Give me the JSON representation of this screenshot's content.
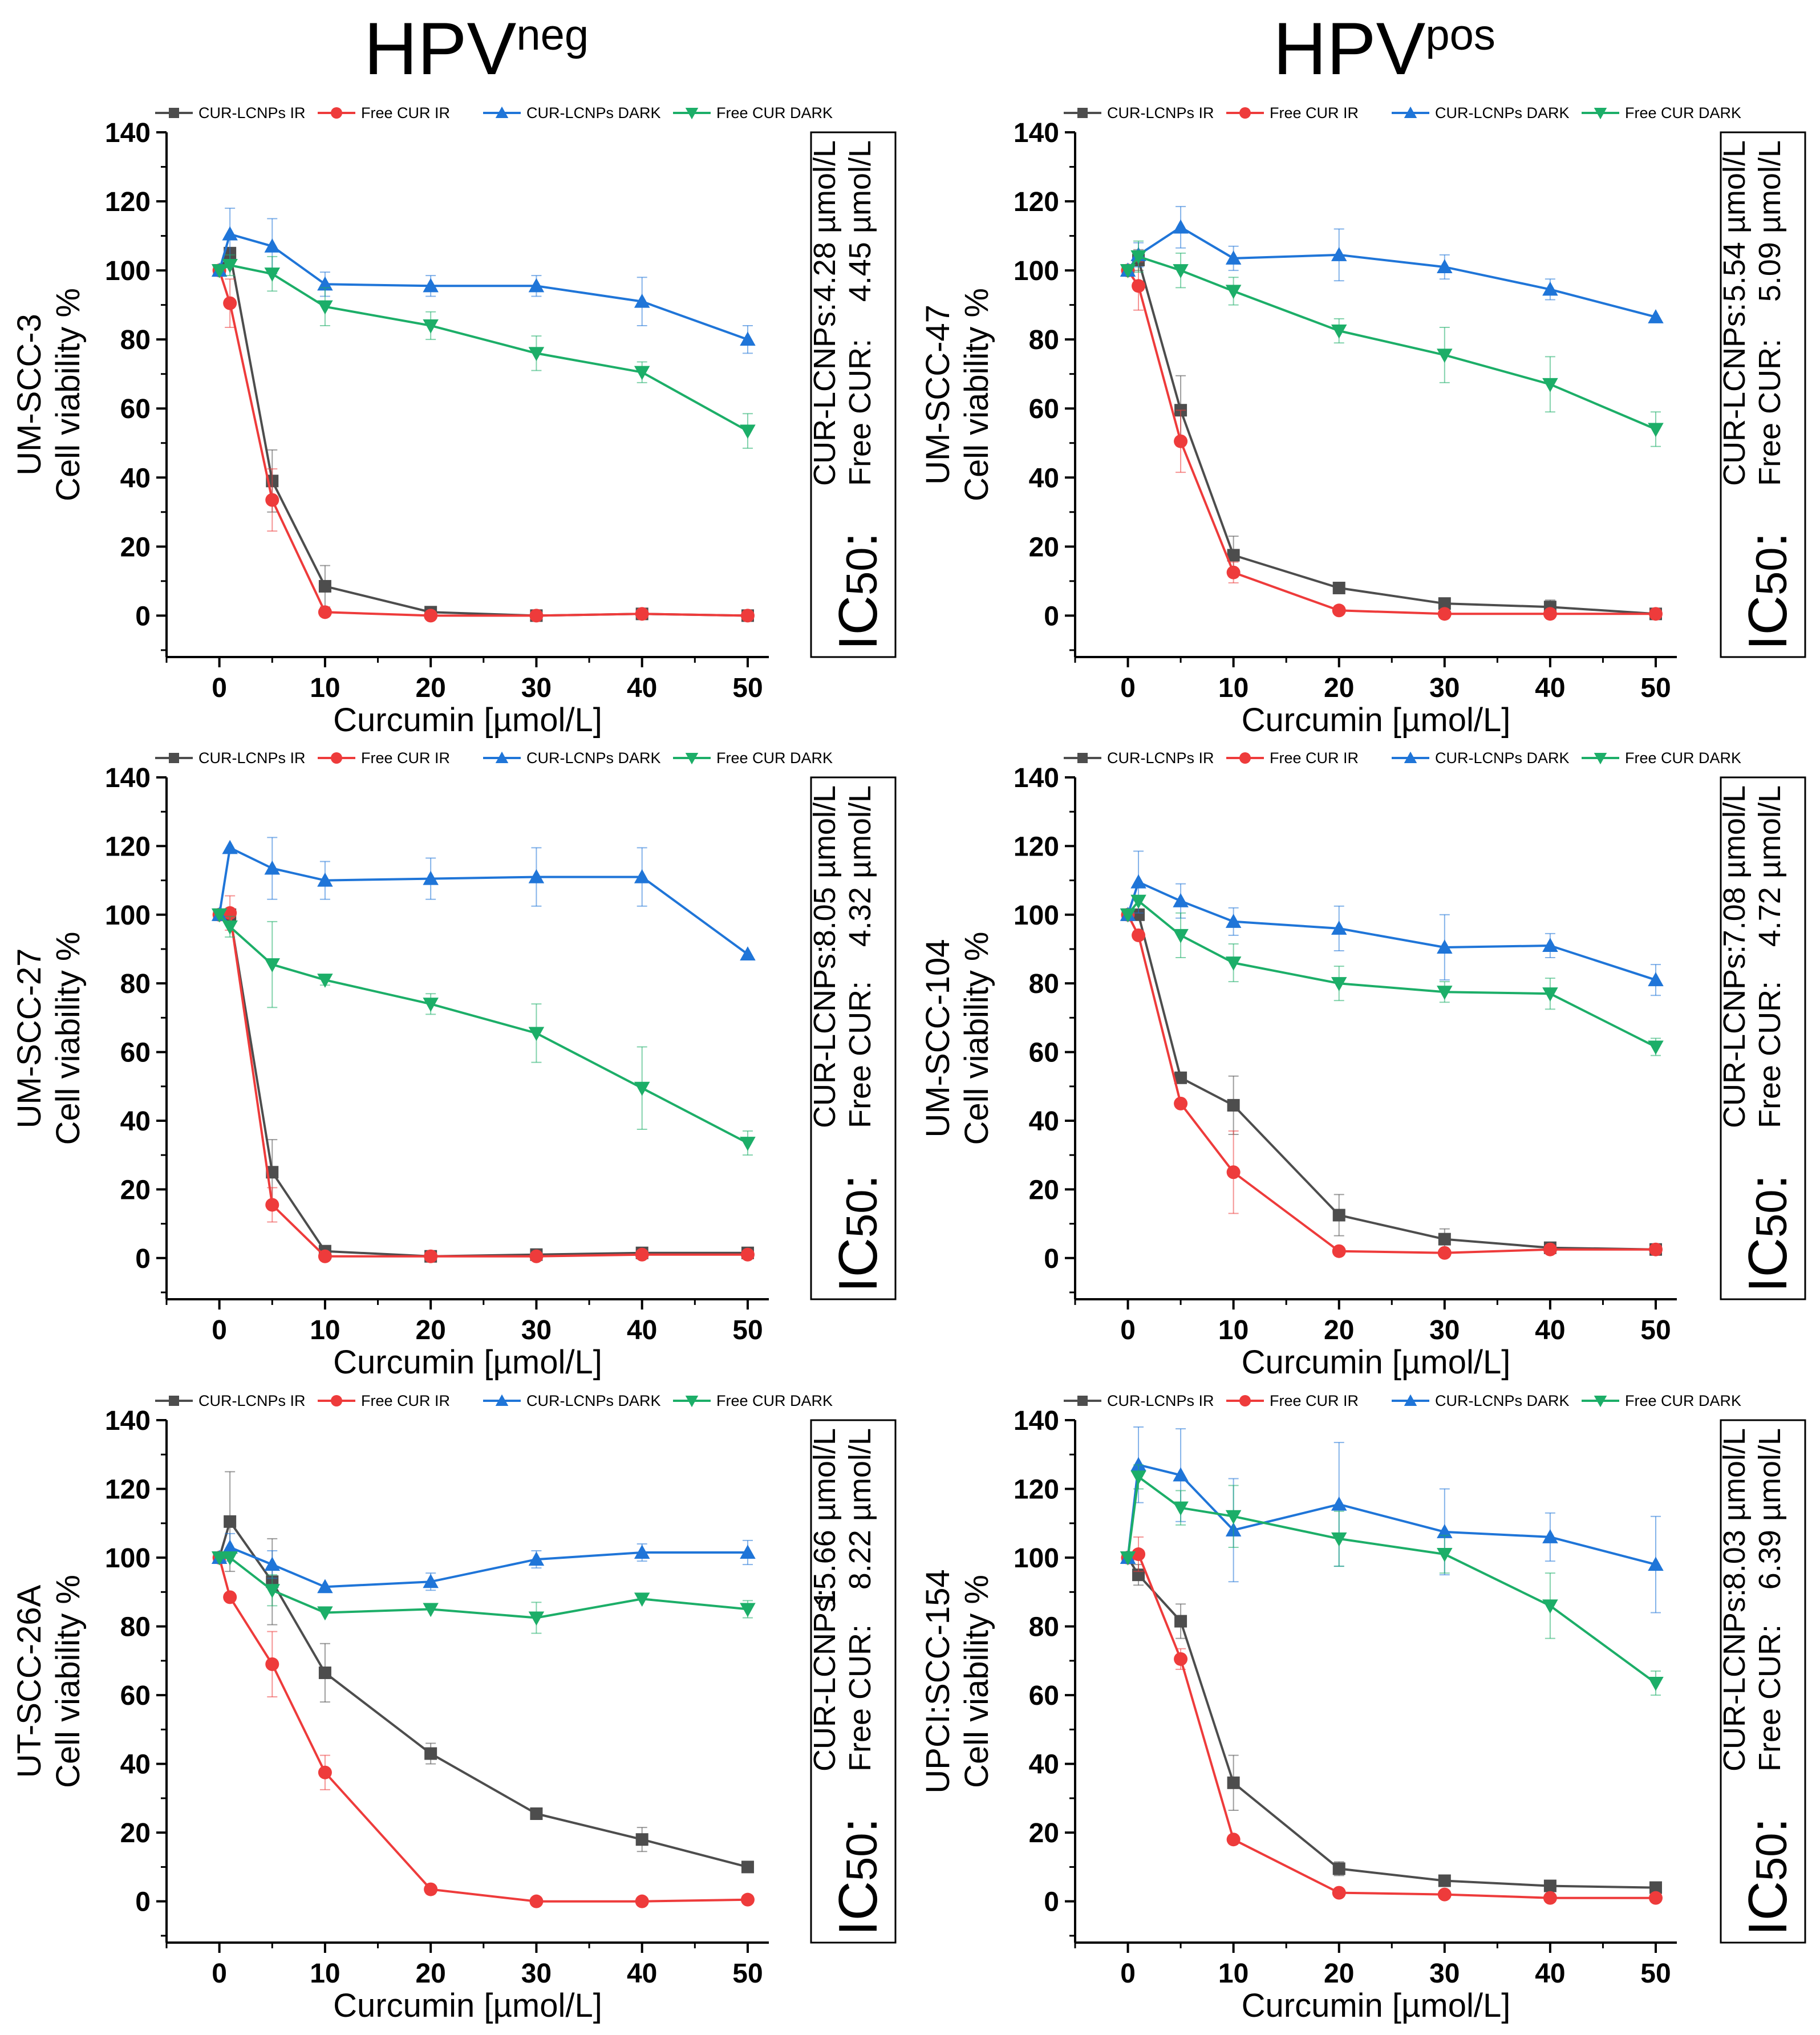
{
  "headers": {
    "neg_base": "HPV",
    "neg_sup": "neg",
    "pos_base": "HPV",
    "pos_sup": "pos"
  },
  "colors": {
    "cur_lcnps_ir": "#4d4d4d",
    "free_cur_ir": "#ee3b3b",
    "cur_lcnps_dark": "#1f75d8",
    "free_cur_dark": "#1cae68"
  },
  "legend": [
    "CUR-LCNPs IR",
    "Free CUR IR",
    "CUR-LCNPs DARK",
    "Free CUR DARK"
  ],
  "ic50_prefix": "IC",
  "ic50_sub": "50",
  "ic50_colon": ":",
  "chart_data": [
    {
      "type": "line",
      "title": "UM-SCC-3",
      "group": "HPVneg",
      "xlabel": "Curcumin [µmol/L]",
      "ylabel": "Cell viability %",
      "cell_line": "UM-SCC-3",
      "xlim": [
        -5,
        52
      ],
      "ylim": [
        -12,
        140
      ],
      "xticks": [
        0,
        10,
        20,
        30,
        40,
        50
      ],
      "yticks": [
        0,
        20,
        40,
        60,
        80,
        100,
        120,
        140
      ],
      "x": [
        0,
        1,
        5,
        10,
        20,
        30,
        40,
        50
      ],
      "series": [
        {
          "name": "CUR-LCNPs IR",
          "marker": "square",
          "values": [
            100,
            105,
            39,
            8.5,
            1,
            0,
            0.5,
            0
          ],
          "errors": [
            0,
            0,
            9,
            6,
            0,
            0,
            0,
            0
          ]
        },
        {
          "name": "Free CUR IR",
          "marker": "circle",
          "values": [
            100,
            90.5,
            33.5,
            1,
            0,
            0,
            0.5,
            0
          ],
          "errors": [
            0,
            7,
            9,
            0,
            0,
            0,
            0,
            0
          ]
        },
        {
          "name": "CUR-LCNPs DARK",
          "marker": "triangle-up",
          "values": [
            100,
            110.5,
            107,
            96,
            95.5,
            95.5,
            91,
            80
          ],
          "errors": [
            0,
            7.5,
            8,
            3.5,
            3,
            3,
            7,
            4
          ]
        },
        {
          "name": "Free CUR DARK",
          "marker": "triangle-down",
          "values": [
            100,
            101.5,
            99,
            89.5,
            84,
            76,
            70.5,
            53.5
          ],
          "errors": [
            0,
            3,
            5,
            5.5,
            4,
            5,
            3,
            5
          ]
        }
      ],
      "ic50": {
        "line1_label": "CUR-LCNPs:",
        "line1_value": "4.28 µmol/L",
        "line2_label": "Free CUR:",
        "line2_value": "4.45 µmol/L"
      }
    },
    {
      "type": "line",
      "title": "UM-SCC-47",
      "group": "HPVpos",
      "xlabel": "Curcumin [µmol/L]",
      "ylabel": "Cell viability %",
      "cell_line": "UM-SCC-47",
      "xlim": [
        -5,
        52
      ],
      "ylim": [
        -12,
        140
      ],
      "xticks": [
        0,
        10,
        20,
        30,
        40,
        50
      ],
      "yticks": [
        0,
        20,
        40,
        60,
        80,
        100,
        120,
        140
      ],
      "x": [
        0,
        1,
        5,
        10,
        20,
        30,
        40,
        50
      ],
      "series": [
        {
          "name": "CUR-LCNPs IR",
          "marker": "square",
          "values": [
            100,
            103,
            59.5,
            17.5,
            8,
            3.5,
            2.5,
            0.5
          ],
          "errors": [
            0,
            3,
            10,
            5.5,
            0,
            1.5,
            2,
            0
          ]
        },
        {
          "name": "Free CUR IR",
          "marker": "circle",
          "values": [
            100,
            95.5,
            50.5,
            12.5,
            1.5,
            0.5,
            0.5,
            0.5
          ],
          "errors": [
            0,
            7,
            9,
            3,
            0,
            0,
            0,
            0
          ]
        },
        {
          "name": "CUR-LCNPs DARK",
          "marker": "triangle-up",
          "values": [
            100,
            104.5,
            112.5,
            103.5,
            104.5,
            101,
            94.5,
            86.5
          ],
          "errors": [
            0,
            3.5,
            6,
            3.5,
            7.5,
            3.5,
            3,
            0
          ]
        },
        {
          "name": "Free CUR DARK",
          "marker": "triangle-down",
          "values": [
            100,
            104,
            100,
            94,
            82.5,
            75.5,
            67,
            54
          ],
          "errors": [
            0,
            4.5,
            5,
            4,
            3.5,
            8,
            8,
            5
          ]
        }
      ],
      "ic50": {
        "line1_label": "CUR-LCNPs:",
        "line1_value": "5.54 µmol/L",
        "line2_label": "Free CUR:",
        "line2_value": "5.09 µmol/L"
      }
    },
    {
      "type": "line",
      "title": "UM-SCC-27",
      "group": "HPVneg",
      "xlabel": "Curcumin [µmol/L]",
      "ylabel": "Cell viability %",
      "cell_line": "UM-SCC-27",
      "xlim": [
        -5,
        52
      ],
      "ylim": [
        -12,
        140
      ],
      "xticks": [
        0,
        10,
        20,
        30,
        40,
        50
      ],
      "yticks": [
        0,
        20,
        40,
        60,
        80,
        100,
        120,
        140
      ],
      "x": [
        0,
        1,
        5,
        10,
        20,
        30,
        40,
        50
      ],
      "series": [
        {
          "name": "CUR-LCNPs IR",
          "marker": "square",
          "values": [
            100,
            100,
            25,
            2,
            0.5,
            1,
            1.5,
            1.5
          ],
          "errors": [
            0,
            0,
            9.5,
            0,
            0,
            0,
            0,
            0
          ]
        },
        {
          "name": "Free CUR IR",
          "marker": "circle",
          "values": [
            100,
            100.5,
            15.5,
            0.5,
            0.5,
            0.5,
            1,
            1
          ],
          "errors": [
            0,
            5,
            5,
            0,
            0,
            0,
            0,
            0
          ]
        },
        {
          "name": "CUR-LCNPs DARK",
          "marker": "triangle-up",
          "values": [
            100,
            119.5,
            113.5,
            110,
            110.5,
            111,
            111,
            88.5
          ],
          "errors": [
            0,
            0,
            9,
            5.5,
            6,
            8.5,
            8.5,
            0
          ]
        },
        {
          "name": "Free CUR DARK",
          "marker": "triangle-down",
          "values": [
            100,
            96.5,
            85.5,
            81,
            74,
            65.5,
            49.5,
            33.5
          ],
          "errors": [
            0,
            3,
            12.5,
            1.5,
            3,
            8.5,
            12,
            3.5
          ]
        }
      ],
      "ic50": {
        "line1_label": "CUR-LCNPs:",
        "line1_value": "8.05 µmol/L",
        "line2_label": "Free CUR:",
        "line2_value": "4.32 µmol/L"
      }
    },
    {
      "type": "line",
      "title": "UM-SCC-104",
      "group": "HPVpos",
      "xlabel": "Curcumin [µmol/L]",
      "ylabel": "Cell viability %",
      "cell_line": "UM-SCC-104",
      "xlim": [
        -5,
        52
      ],
      "ylim": [
        -12,
        140
      ],
      "xticks": [
        0,
        10,
        20,
        30,
        40,
        50
      ],
      "yticks": [
        0,
        20,
        40,
        60,
        80,
        100,
        120,
        140
      ],
      "x": [
        0,
        1,
        5,
        10,
        20,
        30,
        40,
        50
      ],
      "series": [
        {
          "name": "CUR-LCNPs IR",
          "marker": "square",
          "values": [
            100,
            100,
            52.5,
            44.5,
            12.5,
            5.5,
            3,
            2.5
          ],
          "errors": [
            0,
            0,
            0,
            8.5,
            6,
            3,
            0,
            0
          ]
        },
        {
          "name": "Free CUR IR",
          "marker": "circle",
          "values": [
            100,
            94,
            45,
            25,
            2,
            1.5,
            2.5,
            2.5
          ],
          "errors": [
            0,
            0,
            0,
            12,
            0,
            0,
            0,
            0
          ]
        },
        {
          "name": "CUR-LCNPs DARK",
          "marker": "triangle-up",
          "values": [
            100,
            109.5,
            104,
            98,
            96,
            90.5,
            91,
            81
          ],
          "errors": [
            0,
            9,
            5,
            4,
            6.5,
            9.5,
            3.5,
            4.5
          ]
        },
        {
          "name": "Free CUR DARK",
          "marker": "triangle-down",
          "values": [
            100,
            104,
            94,
            86,
            80,
            77.5,
            77,
            61.5
          ],
          "errors": [
            0,
            0,
            6.5,
            5.5,
            5,
            3,
            4.5,
            2.5
          ]
        }
      ],
      "ic50": {
        "line1_label": "CUR-LCNPs:",
        "line1_value": "7.08 µmol/L",
        "line2_label": "Free CUR:",
        "line2_value": "4.72 µmol/L"
      }
    },
    {
      "type": "line",
      "title": "UT-SCC-26A",
      "group": "HPVneg",
      "xlabel": "Curcumin [µmol/L]",
      "ylabel": "Cell viability %",
      "cell_line": "UT-SCC-26A",
      "xlim": [
        -5,
        52
      ],
      "ylim": [
        -12,
        140
      ],
      "xticks": [
        0,
        10,
        20,
        30,
        40,
        50
      ],
      "yticks": [
        0,
        20,
        40,
        60,
        80,
        100,
        120,
        140
      ],
      "x": [
        0,
        1,
        5,
        10,
        20,
        30,
        40,
        50
      ],
      "series": [
        {
          "name": "CUR-LCNPs IR",
          "marker": "square",
          "values": [
            100,
            110.5,
            93,
            66.5,
            43,
            25.5,
            18,
            10
          ],
          "errors": [
            0,
            14.5,
            12.5,
            8.5,
            3,
            0,
            3.5,
            0
          ]
        },
        {
          "name": "Free CUR IR",
          "marker": "circle",
          "values": [
            100,
            88.5,
            69,
            37.5,
            3.5,
            0,
            0,
            0.5
          ],
          "errors": [
            0,
            0,
            9.5,
            5,
            0,
            0,
            0,
            0
          ]
        },
        {
          "name": "CUR-LCNPs DARK",
          "marker": "triangle-up",
          "values": [
            100,
            103,
            98,
            91.5,
            93,
            99.5,
            101.5,
            101.5
          ],
          "errors": [
            0,
            4,
            4,
            0,
            2.5,
            2.5,
            2.5,
            3.5
          ]
        },
        {
          "name": "Free CUR DARK",
          "marker": "triangle-down",
          "values": [
            100,
            100,
            90.5,
            84,
            85,
            82.5,
            88,
            85
          ],
          "errors": [
            0,
            0,
            4.5,
            0,
            0,
            4.5,
            0,
            2.5
          ]
        }
      ],
      "ic50": {
        "line1_label": "CUR-LCNPs:",
        "line1_value": "15.66 µmol/L",
        "line2_label": "Free CUR:",
        "line2_value": "8.22 µmol/L"
      }
    },
    {
      "type": "line",
      "title": "UPCI:SCC-154",
      "group": "HPVpos",
      "xlabel": "Curcumin [µmol/L]",
      "ylabel": "Cell viability %",
      "cell_line": "UPCI:SCC-154",
      "xlim": [
        -5,
        52
      ],
      "ylim": [
        -12,
        140
      ],
      "xticks": [
        0,
        10,
        20,
        30,
        40,
        50
      ],
      "yticks": [
        0,
        20,
        40,
        60,
        80,
        100,
        120,
        140
      ],
      "x": [
        0,
        1,
        5,
        10,
        20,
        30,
        40,
        50
      ],
      "series": [
        {
          "name": "CUR-LCNPs IR",
          "marker": "square",
          "values": [
            100,
            95,
            81.5,
            34.5,
            9.5,
            6,
            4.5,
            4
          ],
          "errors": [
            0,
            3,
            5,
            8,
            2,
            0,
            0,
            0
          ]
        },
        {
          "name": "Free CUR IR",
          "marker": "circle",
          "values": [
            100,
            101,
            70.5,
            18,
            2.5,
            2,
            1,
            1
          ],
          "errors": [
            0,
            5,
            3,
            0,
            0,
            0,
            0,
            0
          ]
        },
        {
          "name": "CUR-LCNPs DARK",
          "marker": "triangle-up",
          "values": [
            100,
            127,
            124,
            108,
            115.5,
            107.5,
            106,
            98
          ],
          "errors": [
            0,
            11,
            13.5,
            15,
            18,
            12.5,
            7,
            14
          ]
        },
        {
          "name": "Free CUR DARK",
          "marker": "triangle-down",
          "values": [
            100,
            123.5,
            114.5,
            112,
            105.5,
            101,
            86,
            63.5
          ],
          "errors": [
            0,
            3.5,
            5,
            9,
            8,
            5.5,
            9.5,
            3.5
          ]
        }
      ],
      "ic50": {
        "line1_label": "CUR-LCNPs:",
        "line1_value": "8.03 µmol/L",
        "line2_label": "Free CUR:",
        "line2_value": "6.39 µmol/L"
      }
    }
  ]
}
